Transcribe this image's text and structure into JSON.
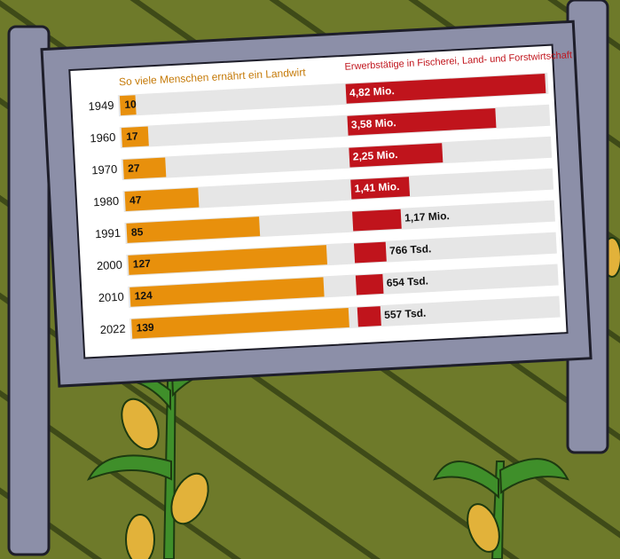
{
  "chart_data": [
    {
      "type": "bar",
      "title": "So viele Menschen ernährt ein Landwirt",
      "categories": [
        "1949",
        "1960",
        "1970",
        "1980",
        "1991",
        "2000",
        "2010",
        "2022"
      ],
      "values": [
        10,
        17,
        27,
        47,
        85,
        127,
        124,
        139
      ],
      "color": "#e8900c"
    },
    {
      "type": "bar",
      "title": "Erwerbstätige in Fischerei, Land- und Forstwirtschaft",
      "values": [
        4.82,
        3.58,
        2.25,
        1.41,
        1.17,
        0.766,
        0.654,
        0.557
      ],
      "value_labels": [
        "4,82 Mio.",
        "3,58 Mio.",
        "2,25 Mio.",
        "1,41 Mio.",
        "1,17 Mio.",
        "766 Tsd.",
        "654 Tsd.",
        "557 Tsd."
      ],
      "color": "#c0141c"
    }
  ]
}
